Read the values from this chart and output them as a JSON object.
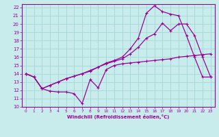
{
  "xlabel": "Windchill (Refroidissement éolien,°C)",
  "bg_color": "#c8ecec",
  "grid_color": "#a8d8d8",
  "line_color": "#990099",
  "xlim": [
    -0.5,
    23.5
  ],
  "ylim": [
    10,
    22.4
  ],
  "xticks": [
    0,
    1,
    2,
    3,
    4,
    5,
    6,
    7,
    8,
    9,
    10,
    11,
    12,
    13,
    14,
    15,
    16,
    17,
    18,
    19,
    20,
    21,
    22,
    23
  ],
  "yticks": [
    10,
    11,
    12,
    13,
    14,
    15,
    16,
    17,
    18,
    19,
    20,
    21,
    22
  ],
  "curve1_x": [
    0,
    1,
    2,
    3,
    4,
    5,
    6,
    7,
    8,
    9,
    10,
    11,
    12,
    13,
    14,
    15,
    16,
    17,
    18,
    19,
    20,
    21,
    22,
    23
  ],
  "curve1_y": [
    14.0,
    13.6,
    12.2,
    11.9,
    11.8,
    11.8,
    11.6,
    10.4,
    13.3,
    12.3,
    14.5,
    15.0,
    15.2,
    15.3,
    15.4,
    15.5,
    15.6,
    15.7,
    15.8,
    16.0,
    16.1,
    16.2,
    16.3,
    16.4
  ],
  "curve2_x": [
    0,
    1,
    2,
    3,
    4,
    5,
    6,
    7,
    8,
    9,
    10,
    11,
    12,
    13,
    14,
    15,
    16,
    17,
    18,
    19,
    20,
    21,
    22,
    23
  ],
  "curve2_y": [
    14.0,
    13.6,
    12.2,
    12.6,
    13.0,
    13.4,
    13.7,
    14.0,
    14.3,
    14.8,
    15.2,
    15.5,
    15.8,
    16.4,
    17.2,
    18.3,
    18.8,
    20.1,
    19.2,
    20.0,
    20.0,
    18.6,
    16.0,
    13.6
  ],
  "curve3_x": [
    0,
    1,
    2,
    3,
    4,
    5,
    6,
    7,
    8,
    9,
    10,
    11,
    12,
    13,
    14,
    15,
    16,
    17,
    18,
    19,
    20,
    21,
    22,
    23
  ],
  "curve3_y": [
    14.0,
    13.6,
    12.2,
    12.6,
    13.0,
    13.4,
    13.7,
    14.0,
    14.4,
    14.8,
    15.3,
    15.6,
    16.0,
    17.0,
    18.3,
    21.3,
    22.2,
    21.5,
    21.2,
    21.0,
    18.6,
    16.0,
    13.6,
    13.6
  ]
}
